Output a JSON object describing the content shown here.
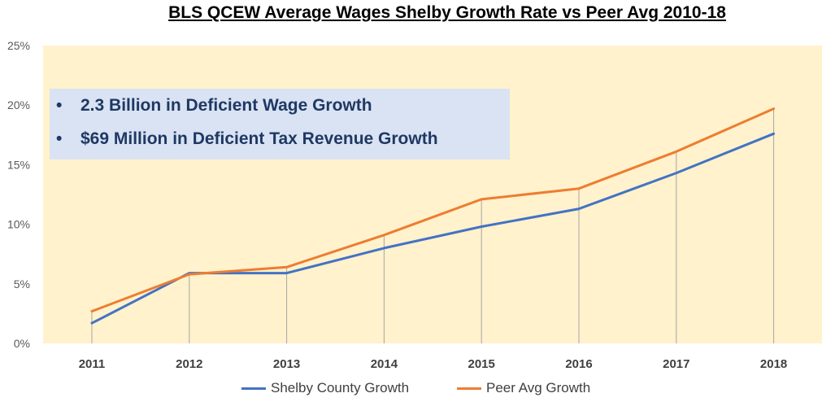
{
  "chart_data": {
    "type": "line",
    "title": "BLS QCEW Average Wages Shelby Growth Rate vs Peer Avg 2010-18",
    "categories": [
      "2011",
      "2012",
      "2013",
      "2014",
      "2015",
      "2016",
      "2017",
      "2018"
    ],
    "series": [
      {
        "name": "Shelby County Growth",
        "color": "#4472c4",
        "values": [
          1.7,
          5.9,
          5.9,
          8.0,
          9.8,
          11.3,
          14.3,
          17.6
        ]
      },
      {
        "name": "Peer Avg Growth",
        "color": "#ed7d31",
        "values": [
          2.7,
          5.8,
          6.4,
          9.1,
          12.1,
          13.0,
          16.1,
          19.7
        ]
      }
    ],
    "yticks": [
      "0%",
      "5%",
      "10%",
      "15%",
      "20%",
      "25%"
    ],
    "ylim": [
      0,
      25
    ],
    "grid": false,
    "drop_lines": true,
    "legend_position": "bottom",
    "plot_background": "#fff2cc"
  },
  "callout": {
    "bullet": "•",
    "items": [
      "2.3 Billion in Deficient Wage Growth",
      "$69 Million in Deficient Tax Revenue Growth"
    ],
    "background": "#dae3f3",
    "text_color": "#1f3864"
  }
}
